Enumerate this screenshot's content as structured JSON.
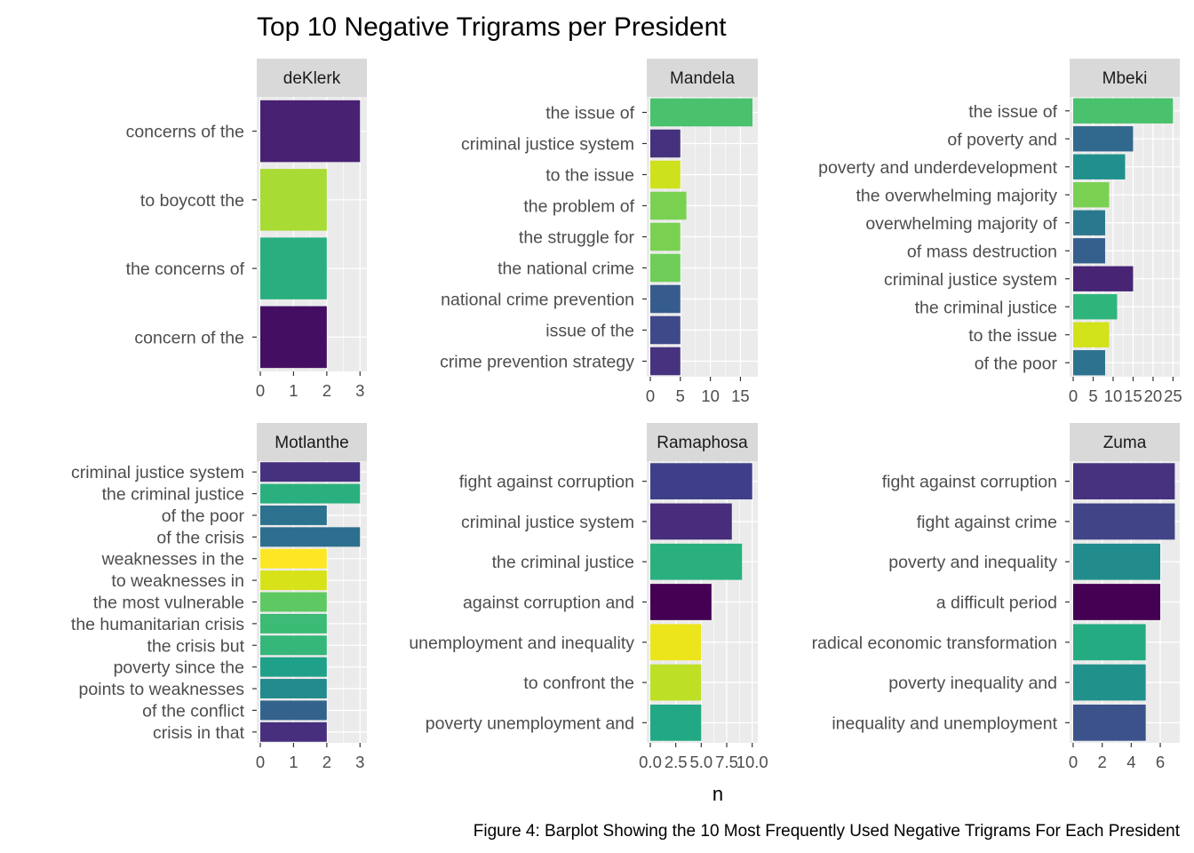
{
  "chart_data": {
    "type": "bar",
    "orientation": "horizontal",
    "title": "Top 10 Negative Trigrams per President",
    "xlabel": "n",
    "caption": "Figure 4: Barplot Showing the 10 Most Frequently Used Negative Trigrams For Each President",
    "grid": true,
    "legend": "none",
    "panels": [
      {
        "president": "deKlerk",
        "xlim": [
          0,
          3.1
        ],
        "ticks": [
          0,
          1,
          2,
          3
        ],
        "tick_labels": [
          "0",
          "1",
          "2",
          "3"
        ],
        "categories": [
          "concerns of the",
          "to boycott the",
          "the concerns of",
          "concern of the"
        ],
        "values": [
          3,
          2,
          2,
          2
        ],
        "colors": [
          "#482173",
          "#a8db34",
          "#29af7f",
          "#440f63"
        ]
      },
      {
        "president": "Mandela",
        "xlim": [
          0,
          17.3
        ],
        "ticks": [
          0,
          5,
          10,
          15
        ],
        "tick_labels": [
          "0",
          "5",
          "10",
          "15"
        ],
        "categories": [
          "the issue of",
          "criminal justice system",
          "to the issue",
          "the problem of",
          "the struggle for",
          "the national crime",
          "national crime prevention",
          "issue of the",
          "crime prevention strategy"
        ],
        "values": [
          17,
          5,
          5,
          6,
          5,
          5,
          5,
          5,
          5
        ],
        "colors": [
          "#4ac16d",
          "#46317e",
          "#cde11d",
          "#7ad151",
          "#7ad151",
          "#6ece58",
          "#365c8d",
          "#3e4989",
          "#46327e"
        ]
      },
      {
        "president": "Mbeki",
        "xlim": [
          0,
          25.8
        ],
        "ticks": [
          0,
          5,
          10,
          15,
          20,
          25
        ],
        "tick_labels": [
          "0",
          "5",
          "10",
          "15",
          "20",
          "25"
        ],
        "categories": [
          "the issue of",
          "of poverty and",
          "poverty and underdevelopment",
          "the overwhelming majority",
          "overwhelming majority of",
          "of mass destruction",
          "criminal justice system",
          "the criminal justice",
          "to the issue",
          "of the poor"
        ],
        "values": [
          25,
          15,
          13,
          9,
          8,
          8,
          15,
          11,
          9,
          8
        ],
        "colors": [
          "#4ac16d",
          "#31688e",
          "#21908d",
          "#7ad151",
          "#2a788e",
          "#355f8d",
          "#482475",
          "#2fb47c",
          "#d2e21b",
          "#2c728e"
        ]
      },
      {
        "president": "Motlanthe",
        "xlim": [
          0,
          3.1
        ],
        "ticks": [
          0,
          1,
          2,
          3
        ],
        "tick_labels": [
          "0",
          "1",
          "2",
          "3"
        ],
        "categories": [
          "criminal justice system",
          "the criminal justice",
          "of the poor",
          "of the crisis",
          "weaknesses in the",
          "to weaknesses in",
          "the most vulnerable",
          "the humanitarian crisis",
          "the crisis but",
          "poverty since the",
          "points to weaknesses",
          "of the conflict",
          "crisis in that"
        ],
        "values": [
          3,
          3,
          2,
          3,
          2,
          2,
          2,
          2,
          2,
          2,
          2,
          2,
          2
        ],
        "colors": [
          "#46317e",
          "#2ab07f",
          "#2c728e",
          "#2e6e8e",
          "#fde725",
          "#d8e219",
          "#5ec962",
          "#3bbb75",
          "#35b779",
          "#1fa088",
          "#238a8d",
          "#33638d",
          "#472f7d"
        ]
      },
      {
        "president": "Ramaphosa",
        "xlim": [
          0,
          10.2
        ],
        "ticks": [
          0,
          2.5,
          5,
          7.5,
          10
        ],
        "tick_labels": [
          "0.0",
          "2.5",
          "5.0",
          "7.5",
          "10.0"
        ],
        "categories": [
          "fight against corruption",
          "criminal justice system",
          "the criminal justice",
          "against corruption and",
          "unemployment and inequality",
          "to confront the",
          "poverty unemployment and"
        ],
        "values": [
          10,
          8,
          9,
          6,
          5,
          5,
          5
        ],
        "colors": [
          "#3f3f89",
          "#472d7b",
          "#2ab07f",
          "#440154",
          "#ece51b",
          "#bddf26",
          "#22a884"
        ]
      },
      {
        "president": "Zuma",
        "xlim": [
          0,
          7.1
        ],
        "ticks": [
          0,
          2,
          4,
          6
        ],
        "tick_labels": [
          "0",
          "2",
          "4",
          "6"
        ],
        "categories": [
          "fight against corruption",
          "fight against crime",
          "poverty and inequality",
          "a difficult period",
          "radical economic transformation",
          "poverty inequality and",
          "inequality and unemployment"
        ],
        "values": [
          7,
          7,
          6,
          6,
          5,
          5,
          5
        ],
        "colors": [
          "#46327e",
          "#414487",
          "#228c8d",
          "#440154",
          "#25ab82",
          "#21918c",
          "#3b528b"
        ]
      }
    ]
  }
}
